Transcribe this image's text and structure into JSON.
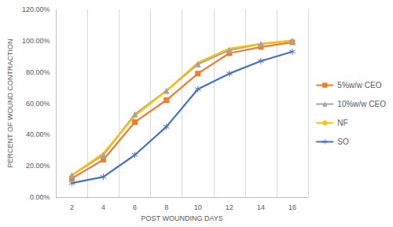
{
  "chart_data": {
    "type": "line",
    "x_label": "POST WOUNDING DAYS",
    "y_label": "PERCENT OF WOUND CONTRACTION",
    "categories": [
      "2",
      "4",
      "6",
      "8",
      "10",
      "12",
      "14",
      "16"
    ],
    "series": [
      {
        "name": "5%w/w CEO",
        "color": "#ED7D31",
        "marker": "square",
        "values": [
          12,
          24,
          48,
          62,
          79,
          92,
          96,
          99
        ]
      },
      {
        "name": "10%w/w CEO",
        "color": "#A5A5A5",
        "marker": "triangle",
        "values": [
          14,
          27,
          53,
          68,
          85,
          94,
          98,
          100
        ]
      },
      {
        "name": "NF",
        "color": "#FFC000",
        "marker": "none",
        "values": [
          14,
          28,
          52,
          68,
          86,
          95,
          98,
          100
        ]
      },
      {
        "name": "SO",
        "color": "#4472C4",
        "marker": "asterisk",
        "values": [
          9,
          13,
          27,
          45,
          69,
          79,
          87,
          93
        ]
      }
    ],
    "ylim": [
      0,
      120
    ],
    "yticks": [
      {
        "value": 0,
        "label": "0.00%"
      },
      {
        "value": 20,
        "label": "20.00%"
      },
      {
        "value": 40,
        "label": "40.00%"
      },
      {
        "value": 60,
        "label": "60.00%"
      },
      {
        "value": 80,
        "label": "80.00%"
      },
      {
        "value": 100,
        "label": "100.00%"
      },
      {
        "value": 120,
        "label": "120.00%"
      }
    ],
    "grid": true,
    "legend": "right"
  }
}
